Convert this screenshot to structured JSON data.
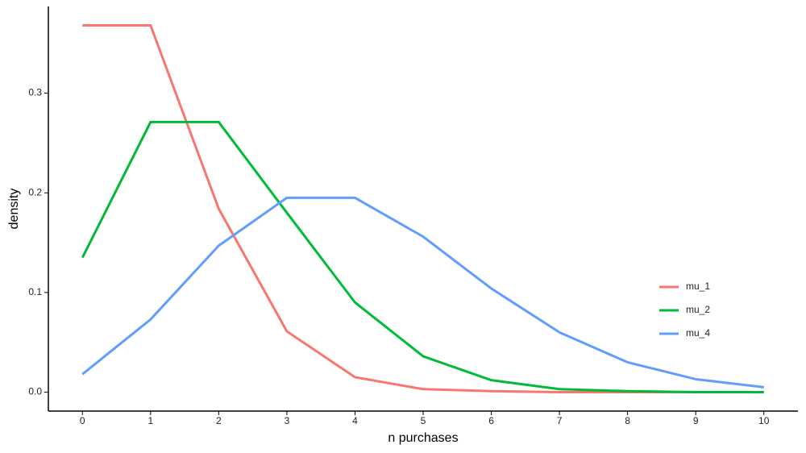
{
  "chart_data": {
    "type": "line",
    "x_label": "n purchases",
    "y_label": "density",
    "x": [
      0,
      1,
      2,
      3,
      4,
      5,
      6,
      7,
      8,
      9,
      10
    ],
    "series": [
      {
        "name": "mu_1",
        "color": "#F8766D",
        "values": [
          0.368,
          0.368,
          0.184,
          0.061,
          0.015,
          0.003,
          0.001,
          0.0,
          0.0,
          0.0,
          0.0
        ]
      },
      {
        "name": "mu_2",
        "color": "#00BA38",
        "values": [
          0.135,
          0.271,
          0.271,
          0.18,
          0.09,
          0.036,
          0.012,
          0.003,
          0.001,
          0.0,
          0.0
        ]
      },
      {
        "name": "mu_4",
        "color": "#619CFF",
        "values": [
          0.018,
          0.073,
          0.147,
          0.195,
          0.195,
          0.156,
          0.104,
          0.06,
          0.03,
          0.013,
          0.005
        ]
      }
    ],
    "xlim": [
      -0.5,
      10.5
    ],
    "xticks": [
      0,
      1,
      2,
      3,
      4,
      5,
      6,
      7,
      8,
      9,
      10
    ],
    "ylim": [
      -0.019,
      0.387
    ],
    "yticks": [
      {
        "value": 0,
        "label": "0.0"
      },
      0.1,
      0.2,
      0.3
    ],
    "legend": "right"
  }
}
